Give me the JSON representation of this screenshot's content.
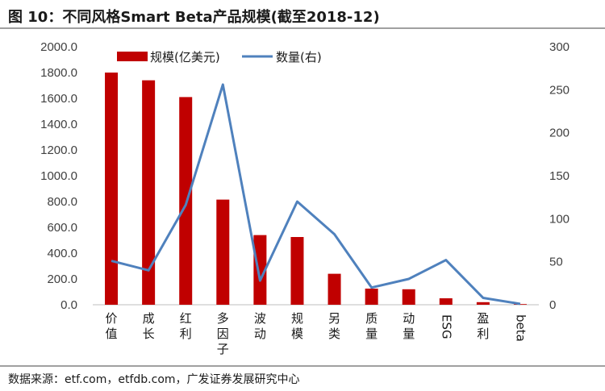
{
  "title": "图 10：不同风格Smart Beta产品规模(截至2018-12)",
  "source": "数据来源：etf.com，etfdb.com，广发证券发展研究中心",
  "chart_data": {
    "type": "bar",
    "categories": [
      "价值",
      "成长",
      "红利",
      "多因子",
      "波动",
      "规模",
      "另类",
      "质量",
      "动量",
      "ESG",
      "盈利",
      "beta"
    ],
    "series": [
      {
        "name": "规模(亿美元)",
        "type": "bar",
        "axis": "left",
        "color": "#c00000",
        "values": [
          1800,
          1740,
          1610,
          815,
          540,
          525,
          240,
          125,
          120,
          50,
          20,
          5
        ]
      },
      {
        "name": "数量(右)",
        "type": "line",
        "axis": "right",
        "color": "#4f81bd",
        "values": [
          51,
          40,
          116,
          256,
          28,
          120,
          82,
          20,
          30,
          52,
          8,
          1
        ]
      }
    ],
    "y_left": {
      "ticks": [
        "2000.0",
        "1800.0",
        "1600.0",
        "1400.0",
        "1200.0",
        "1000.0",
        "800.0",
        "600.0",
        "400.0",
        "200.0",
        "0.0"
      ],
      "range": [
        0,
        2000
      ]
    },
    "y_right": {
      "ticks": [
        "300",
        "250",
        "200",
        "150",
        "100",
        "50",
        "0"
      ],
      "range": [
        0,
        300
      ]
    },
    "grid": false,
    "legend_position": "top-left"
  }
}
